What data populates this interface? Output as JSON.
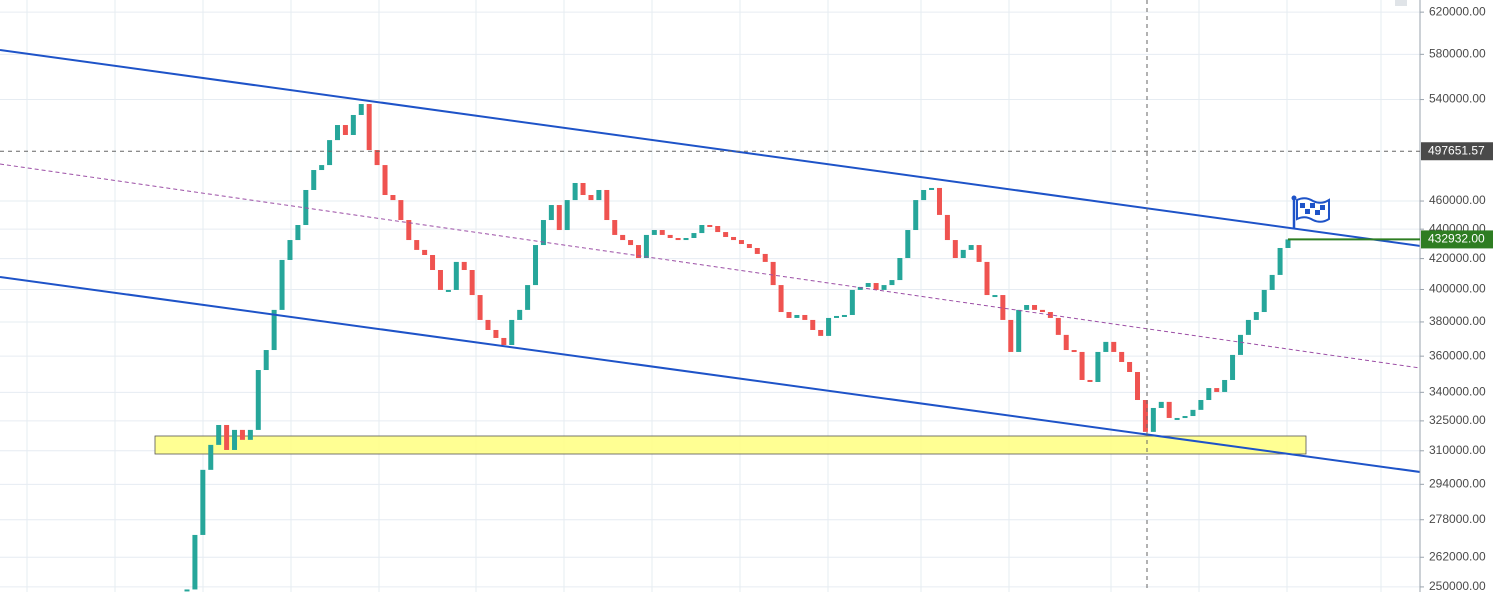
{
  "chart_data": {
    "type": "candlestick",
    "values": [
      249000,
      271400,
      300800,
      312900,
      322900,
      310400,
      320400,
      315400,
      320400,
      352200,
      363500,
      387300,
      419100,
      432500,
      442900,
      468100,
      483100,
      486900,
      506500,
      518700,
      510600,
      527000,
      536200,
      498600,
      486900,
      464400,
      460700,
      446400,
      432500,
      425800,
      422400,
      412500,
      399700,
      399700,
      417800,
      412500,
      396500,
      381200,
      375200,
      370500,
      366400,
      381200,
      387300,
      402800,
      429100,
      446400,
      457100,
      439400,
      460700,
      473300,
      464400,
      460700,
      468100,
      446400,
      436000,
      432500,
      429100,
      420400,
      436000,
      439400,
      436000,
      433900,
      432500,
      433900,
      437300,
      442900,
      442200,
      438000,
      434600,
      432500,
      429800,
      427100,
      423100,
      417800,
      402800,
      386000,
      382400,
      384200,
      381200,
      375200,
      371700,
      382400,
      383600,
      384200,
      399700,
      401600,
      404100,
      399700,
      402800,
      406000,
      420400,
      439400,
      460700,
      468100,
      469600,
      450000,
      432500,
      420400,
      425800,
      429100,
      417800,
      396500,
      396500,
      381200,
      362400,
      387300,
      390300,
      387300,
      386000,
      382400,
      372300,
      363500,
      362400,
      346700,
      345600,
      362400,
      368200,
      362400,
      356700,
      351100,
      335900,
      319400,
      331700,
      334900,
      326500,
      326500,
      327500,
      330700,
      335900,
      342300,
      340200,
      346700,
      360700,
      372300,
      381200,
      386000,
      399700,
      409300,
      427100,
      432932
    ],
    "up_color": "#26a69a",
    "down_color": "#ef5350",
    "log_scale": true,
    "grid": true,
    "ylim": [
      248000,
      632000
    ],
    "yticks": [
      {
        "value": 620000,
        "label": "620000.00"
      },
      {
        "value": 580000,
        "label": "580000.00"
      },
      {
        "value": 540000,
        "label": "540000.00"
      },
      {
        "value": 460000,
        "label": "460000.00"
      },
      {
        "value": 440000,
        "label": "440000.00"
      },
      {
        "value": 420000,
        "label": "420000.00"
      },
      {
        "value": 400000,
        "label": "400000.00"
      },
      {
        "value": 380000,
        "label": "380000.00"
      },
      {
        "value": 360000,
        "label": "360000.00"
      },
      {
        "value": 340000,
        "label": "340000.00"
      },
      {
        "value": 325000,
        "label": "325000.00"
      },
      {
        "value": 310000,
        "label": "310000.00"
      },
      {
        "value": 294000,
        "label": "294000.00"
      },
      {
        "value": 278000,
        "label": "278000.00"
      },
      {
        "value": 262000,
        "label": "262000.00"
      },
      {
        "value": 250000,
        "label": "250000.00"
      }
    ],
    "crosshair_price": {
      "value": 497651.57,
      "label": "497651.57"
    },
    "last_price": {
      "value": 432932,
      "label": "432932.00",
      "color": "#2e7d22"
    }
  }
}
